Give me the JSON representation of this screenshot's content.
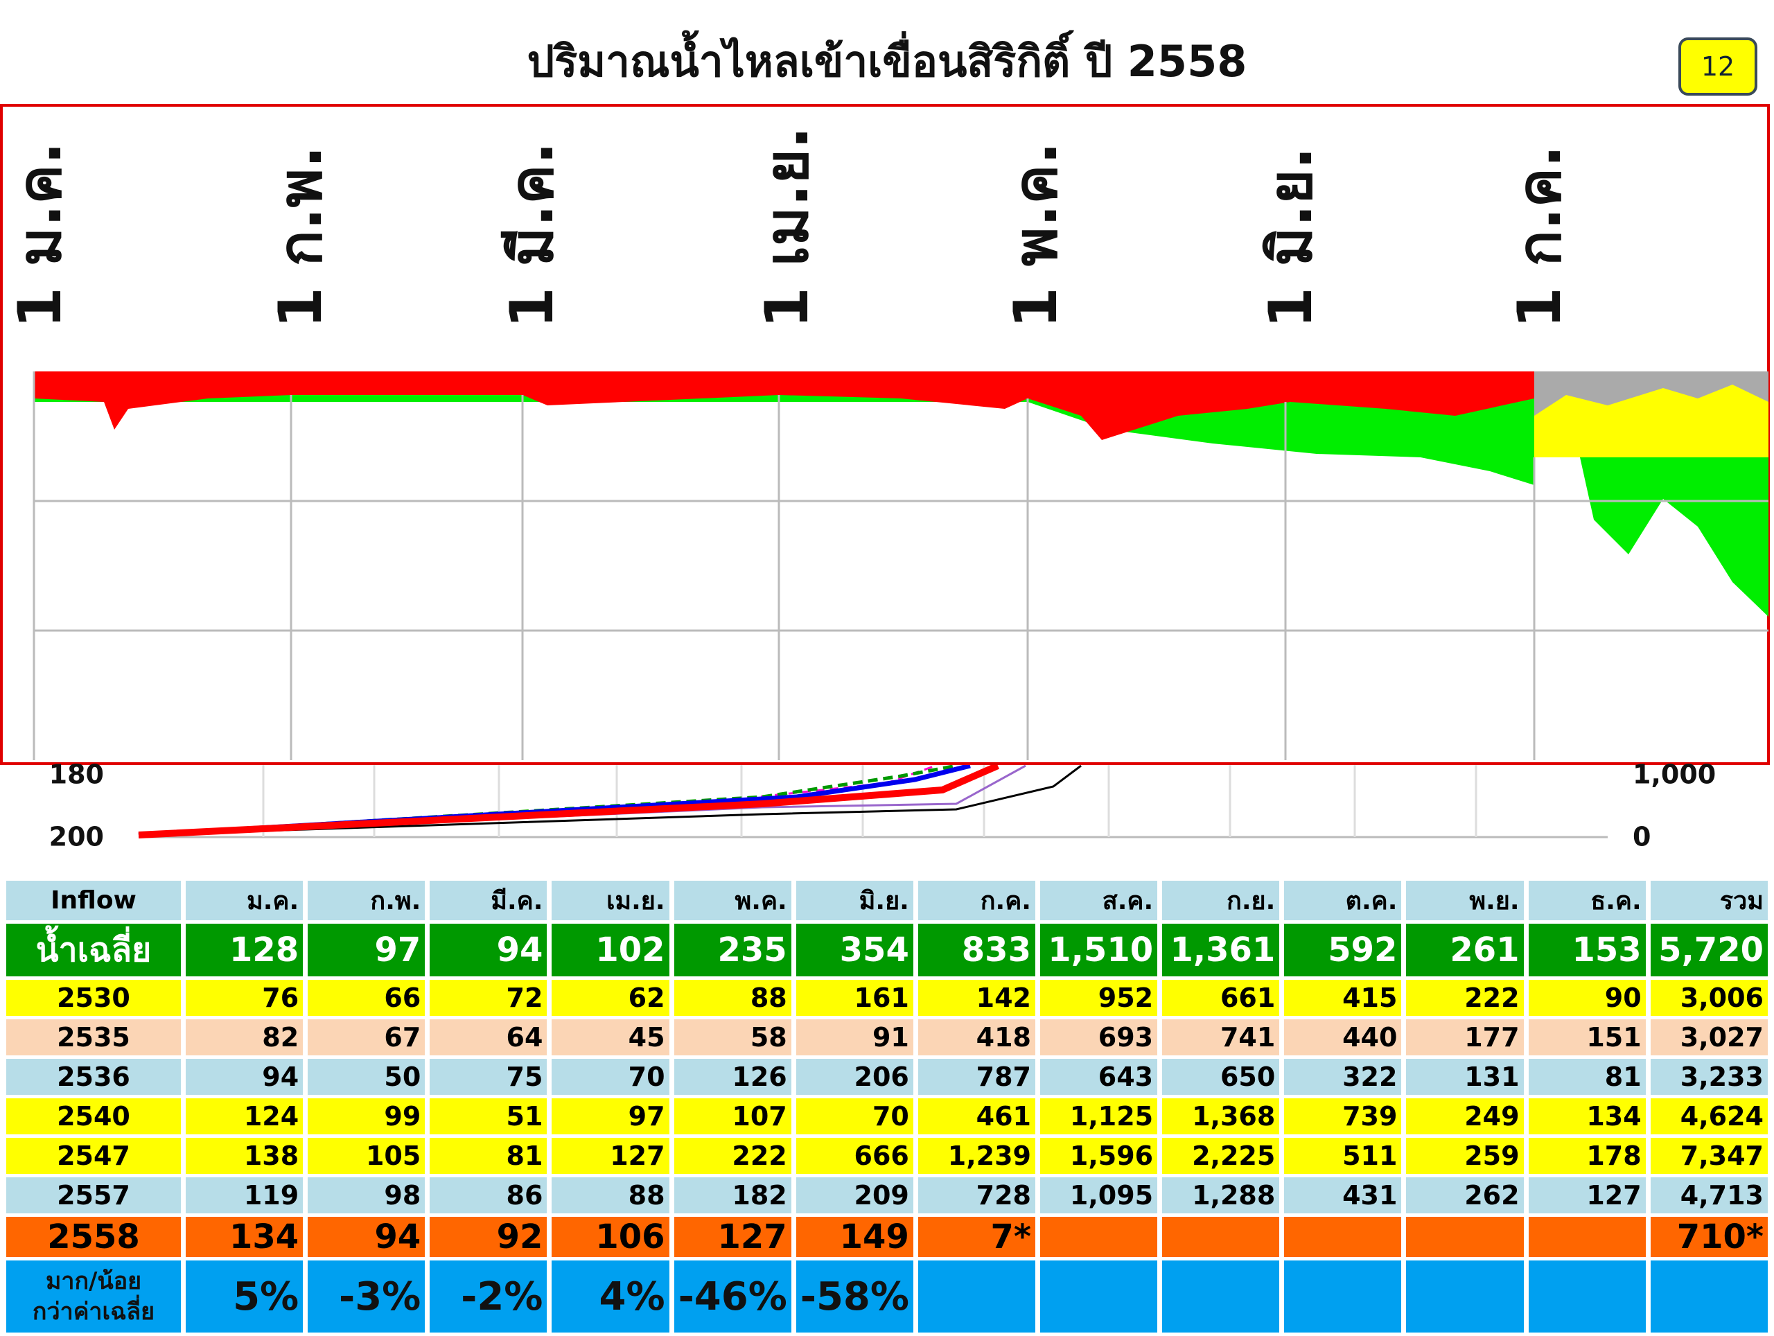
{
  "header": {
    "title": "ปริมาณน้ำไหลเข้าเขื่อนสิริกิติ์ ปี 2558",
    "page": "12"
  },
  "date_labels": [
    "1 ม.ค.",
    "1 ก.พ.",
    "1 มี.ค.",
    "1 เม.ย.",
    "1 พ.ค.",
    "1 มิ.ย.",
    "1 ก.ค."
  ],
  "lower_axis": {
    "left_ticks": [
      "180",
      "200"
    ],
    "right_ticks": [
      "1,000",
      "0"
    ]
  },
  "table": {
    "header": [
      "Inflow",
      "ม.ค.",
      "ก.พ.",
      "มี.ค.",
      "เม.ย.",
      "พ.ค.",
      "มิ.ย.",
      "ก.ค.",
      "ส.ค.",
      "ก.ย.",
      "ต.ค.",
      "พ.ย.",
      "ธ.ค.",
      "รวม"
    ],
    "rows": [
      [
        "น้ำเฉลี่ย",
        "128",
        "97",
        "94",
        "102",
        "235",
        "354",
        "833",
        "1,510",
        "1,361",
        "592",
        "261",
        "153",
        "5,720"
      ],
      [
        "2530",
        "76",
        "66",
        "72",
        "62",
        "88",
        "161",
        "142",
        "952",
        "661",
        "415",
        "222",
        "90",
        "3,006"
      ],
      [
        "2535",
        "82",
        "67",
        "64",
        "45",
        "58",
        "91",
        "418",
        "693",
        "741",
        "440",
        "177",
        "151",
        "3,027"
      ],
      [
        "2536",
        "94",
        "50",
        "75",
        "70",
        "126",
        "206",
        "787",
        "643",
        "650",
        "322",
        "131",
        "81",
        "3,233"
      ],
      [
        "2540",
        "124",
        "99",
        "51",
        "97",
        "107",
        "70",
        "461",
        "1,125",
        "1,368",
        "739",
        "249",
        "134",
        "4,624"
      ],
      [
        "2547",
        "138",
        "105",
        "81",
        "127",
        "222",
        "666",
        "1,239",
        "1,596",
        "2,225",
        "511",
        "259",
        "178",
        "7,347"
      ],
      [
        "2557",
        "119",
        "98",
        "86",
        "88",
        "182",
        "209",
        "728",
        "1,095",
        "1,288",
        "431",
        "262",
        "127",
        "4,713"
      ],
      [
        "2558",
        "134",
        "94",
        "92",
        "106",
        "127",
        "149",
        "7*",
        null,
        null,
        null,
        null,
        null,
        "710*"
      ],
      [
        "มาก/น้อย\nกว่าค่าเฉลี่ย",
        "5%",
        "-3%",
        "-2%",
        "4%",
        "-46%",
        "-58%",
        null,
        null,
        null,
        null,
        null,
        null,
        null
      ]
    ]
  }
}
